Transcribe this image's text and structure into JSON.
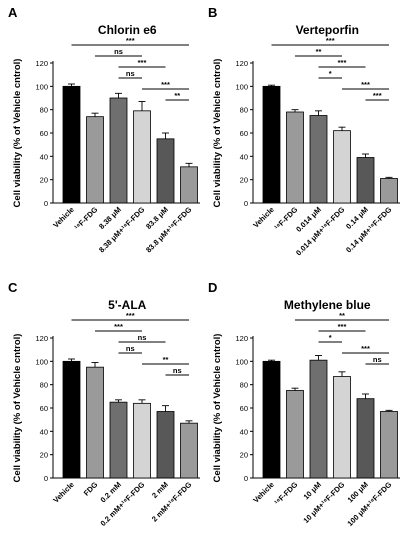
{
  "chart_data": [
    {
      "letter": "A",
      "type": "bar",
      "title": "Chlorin e6",
      "ylabel": "Cell viability (% of Vehicle cntrol)",
      "ylim": [
        0,
        120
      ],
      "yticks": [
        0,
        20,
        40,
        60,
        80,
        100,
        120
      ],
      "categories": [
        "Vehicle",
        "¹⁸F-FDG",
        "8.38 μM",
        "8.38 μM+¹⁸F-FDG",
        "83.8 μM",
        "83.8 μM+¹⁸F-FDG"
      ],
      "values": [
        100,
        74,
        90,
        79,
        55,
        31
      ],
      "errors": [
        2,
        3,
        4,
        8,
        5,
        3
      ],
      "bar_colors": [
        "#000000",
        "#9a9a9a",
        "#6f6f6f",
        "#d4d4d4",
        "#585858",
        "#9a9a9a"
      ],
      "comparisons": [
        {
          "from": 0,
          "to": 5,
          "label": "***"
        },
        {
          "from": 1,
          "to": 3,
          "label": "ns"
        },
        {
          "from": 2,
          "to": 4,
          "label": "***"
        },
        {
          "from": 2,
          "to": 3,
          "label": "ns"
        },
        {
          "from": 3,
          "to": 5,
          "label": "***"
        },
        {
          "from": 4,
          "to": 5,
          "label": "**"
        }
      ]
    },
    {
      "letter": "B",
      "type": "bar",
      "title": "Verteporfin",
      "ylabel": "Cell viability (% of Vehicle cntrol)",
      "ylim": [
        0,
        120
      ],
      "yticks": [
        0,
        20,
        40,
        60,
        80,
        100,
        120
      ],
      "categories": [
        "Vehicle",
        "¹⁸F-FDG",
        "0.014 μM",
        "0.014 μM+¹⁸F-FDG",
        "0.14 μM",
        "0.14 μM+¹⁸F-FDG"
      ],
      "values": [
        100,
        78,
        75,
        62,
        39,
        21
      ],
      "errors": [
        1,
        2,
        4,
        3,
        3,
        1
      ],
      "bar_colors": [
        "#000000",
        "#9a9a9a",
        "#6f6f6f",
        "#d4d4d4",
        "#585858",
        "#9a9a9a"
      ],
      "comparisons": [
        {
          "from": 0,
          "to": 5,
          "label": "***"
        },
        {
          "from": 1,
          "to": 3,
          "label": "**"
        },
        {
          "from": 2,
          "to": 4,
          "label": "***"
        },
        {
          "from": 2,
          "to": 3,
          "label": "*"
        },
        {
          "from": 3,
          "to": 5,
          "label": "***"
        },
        {
          "from": 4,
          "to": 5,
          "label": "***"
        }
      ]
    },
    {
      "letter": "C",
      "type": "bar",
      "title": "5'-ALA",
      "ylabel": "Cell viability (% of Vehicle cntrol)",
      "ylim": [
        0,
        120
      ],
      "yticks": [
        0,
        20,
        40,
        60,
        80,
        100,
        120
      ],
      "categories": [
        "Vehicle",
        "FDG",
        "0.2 mM",
        "0.2 mM+¹⁸F-FDG",
        "2 mM",
        "2 mM+¹⁸F-FDG"
      ],
      "values": [
        100,
        95,
        65,
        64,
        57,
        47
      ],
      "errors": [
        2,
        4,
        2,
        3,
        5,
        2
      ],
      "bar_colors": [
        "#000000",
        "#9a9a9a",
        "#6f6f6f",
        "#d4d4d4",
        "#585858",
        "#9a9a9a"
      ],
      "comparisons": [
        {
          "from": 0,
          "to": 5,
          "label": "***"
        },
        {
          "from": 1,
          "to": 3,
          "label": "***"
        },
        {
          "from": 2,
          "to": 4,
          "label": "ns"
        },
        {
          "from": 2,
          "to": 3,
          "label": "ns"
        },
        {
          "from": 3,
          "to": 5,
          "label": "**"
        },
        {
          "from": 4,
          "to": 5,
          "label": "ns"
        }
      ]
    },
    {
      "letter": "D",
      "type": "bar",
      "title": "Methylene blue",
      "ylabel": "Cell viability (% of Vehicle cntrol)",
      "ylim": [
        0,
        120
      ],
      "yticks": [
        0,
        20,
        40,
        60,
        80,
        100,
        120
      ],
      "categories": [
        "Vehicle",
        "¹⁸F-FDG",
        "10 μM",
        "10 μM+¹⁸F-FDG",
        "100 μM",
        "100 μM+¹⁸F-FDG"
      ],
      "values": [
        100,
        75,
        101,
        87,
        68,
        57
      ],
      "errors": [
        1,
        2,
        4,
        4,
        4,
        1
      ],
      "bar_colors": [
        "#000000",
        "#9a9a9a",
        "#6f6f6f",
        "#d4d4d4",
        "#585858",
        "#9a9a9a"
      ],
      "comparisons": [
        {
          "from": 1,
          "to": 5,
          "label": "**"
        },
        {
          "from": 2,
          "to": 4,
          "label": "***"
        },
        {
          "from": 2,
          "to": 3,
          "label": "*"
        },
        {
          "from": 3,
          "to": 5,
          "label": "***"
        },
        {
          "from": 4,
          "to": 5,
          "label": "ns"
        }
      ]
    }
  ]
}
